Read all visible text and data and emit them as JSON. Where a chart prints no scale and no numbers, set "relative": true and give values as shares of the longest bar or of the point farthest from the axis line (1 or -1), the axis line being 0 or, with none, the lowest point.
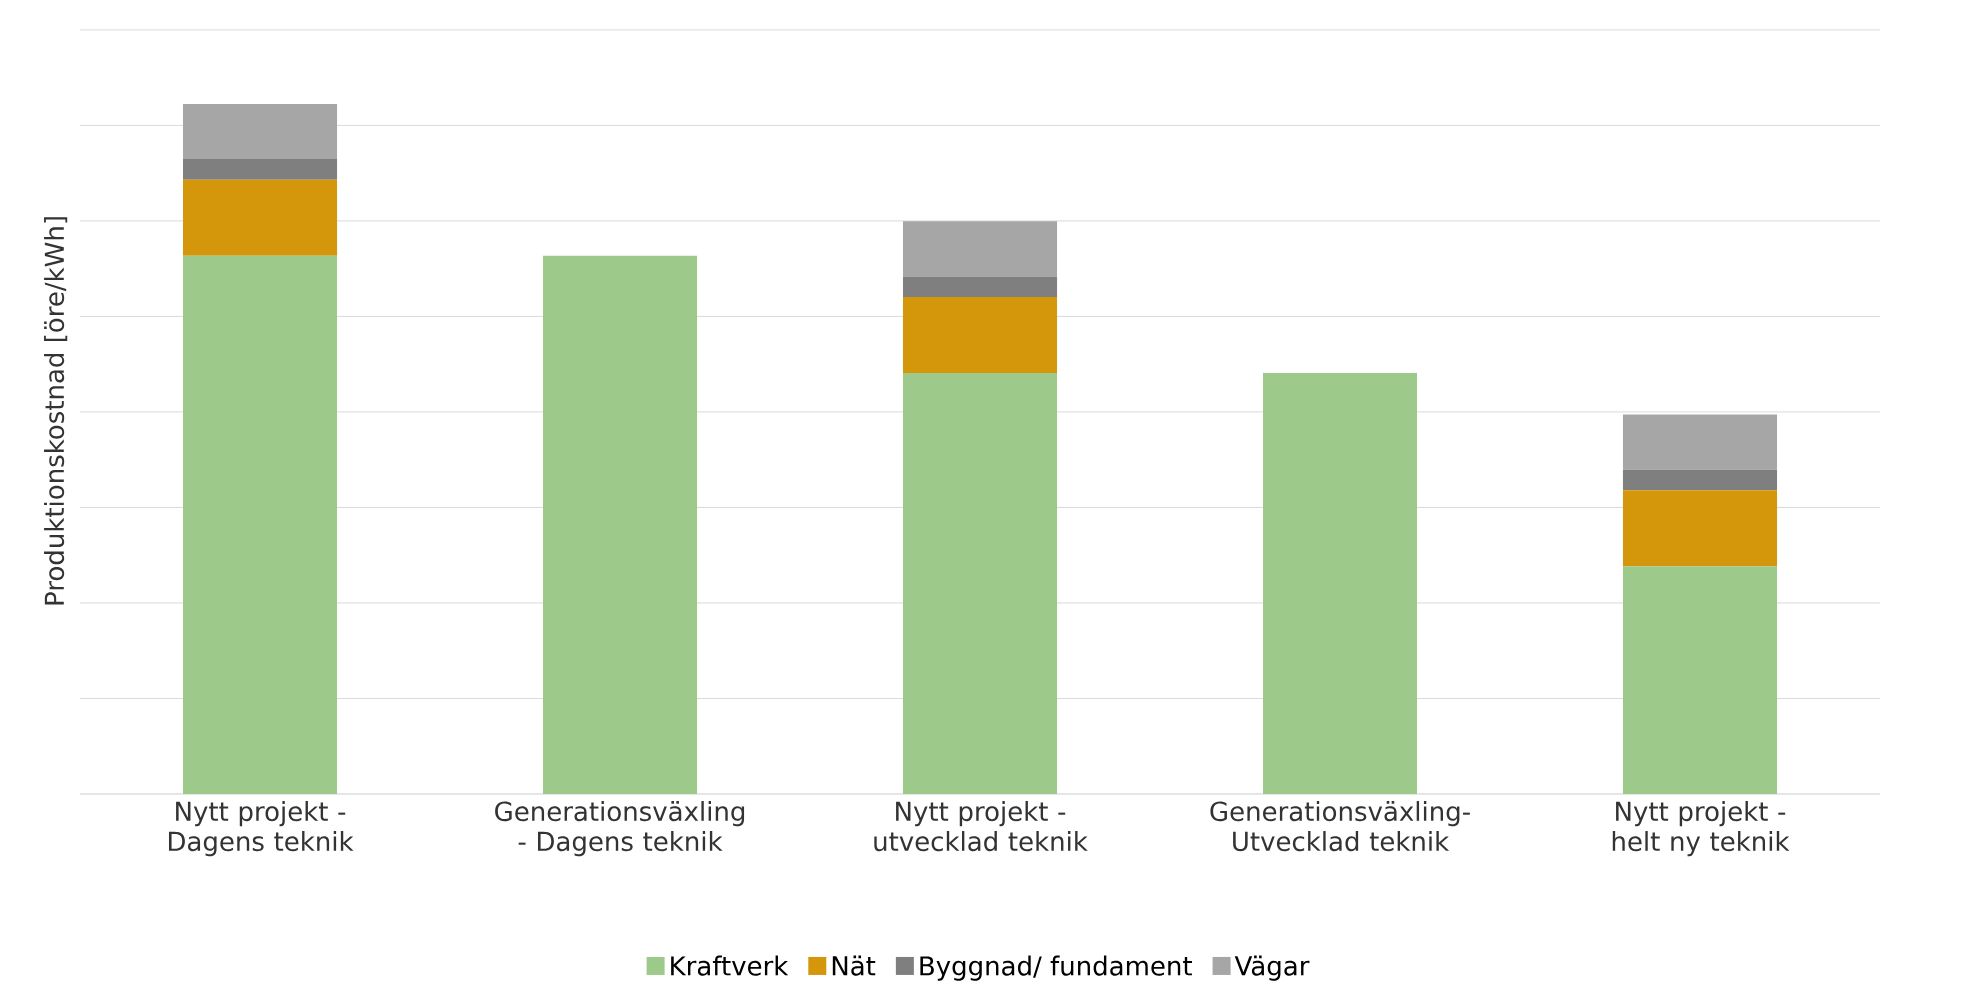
{
  "chart_data": {
    "type": "bar",
    "stacked": true,
    "relative": true,
    "ylabel": "Produktionskostnad [öre/kWh]",
    "categories": [
      "Nytt projekt - Dagens teknik",
      "Generationsväxling - Dagens teknik",
      "Nytt projekt -utvecklad teknik",
      "Generationsväxling- Utvecklad teknik",
      "Nytt projekt - helt ny teknik"
    ],
    "series": [
      {
        "name": "Kraftverk",
        "color": "#9dc98a",
        "values": [
          0.78,
          0.78,
          0.61,
          0.61,
          0.33
        ]
      },
      {
        "name": "Nät",
        "color": "#d4960a",
        "values": [
          0.11,
          null,
          0.11,
          null,
          0.11
        ]
      },
      {
        "name": "Byggnad/ fundament",
        "color": "#7f7f7f",
        "values": [
          0.03,
          null,
          0.03,
          null,
          0.03
        ]
      },
      {
        "name": "Vägar",
        "color": "#a6a6a6",
        "values": [
          0.08,
          null,
          0.08,
          null,
          0.08
        ]
      }
    ],
    "grid": "y",
    "legend": "bottom"
  }
}
